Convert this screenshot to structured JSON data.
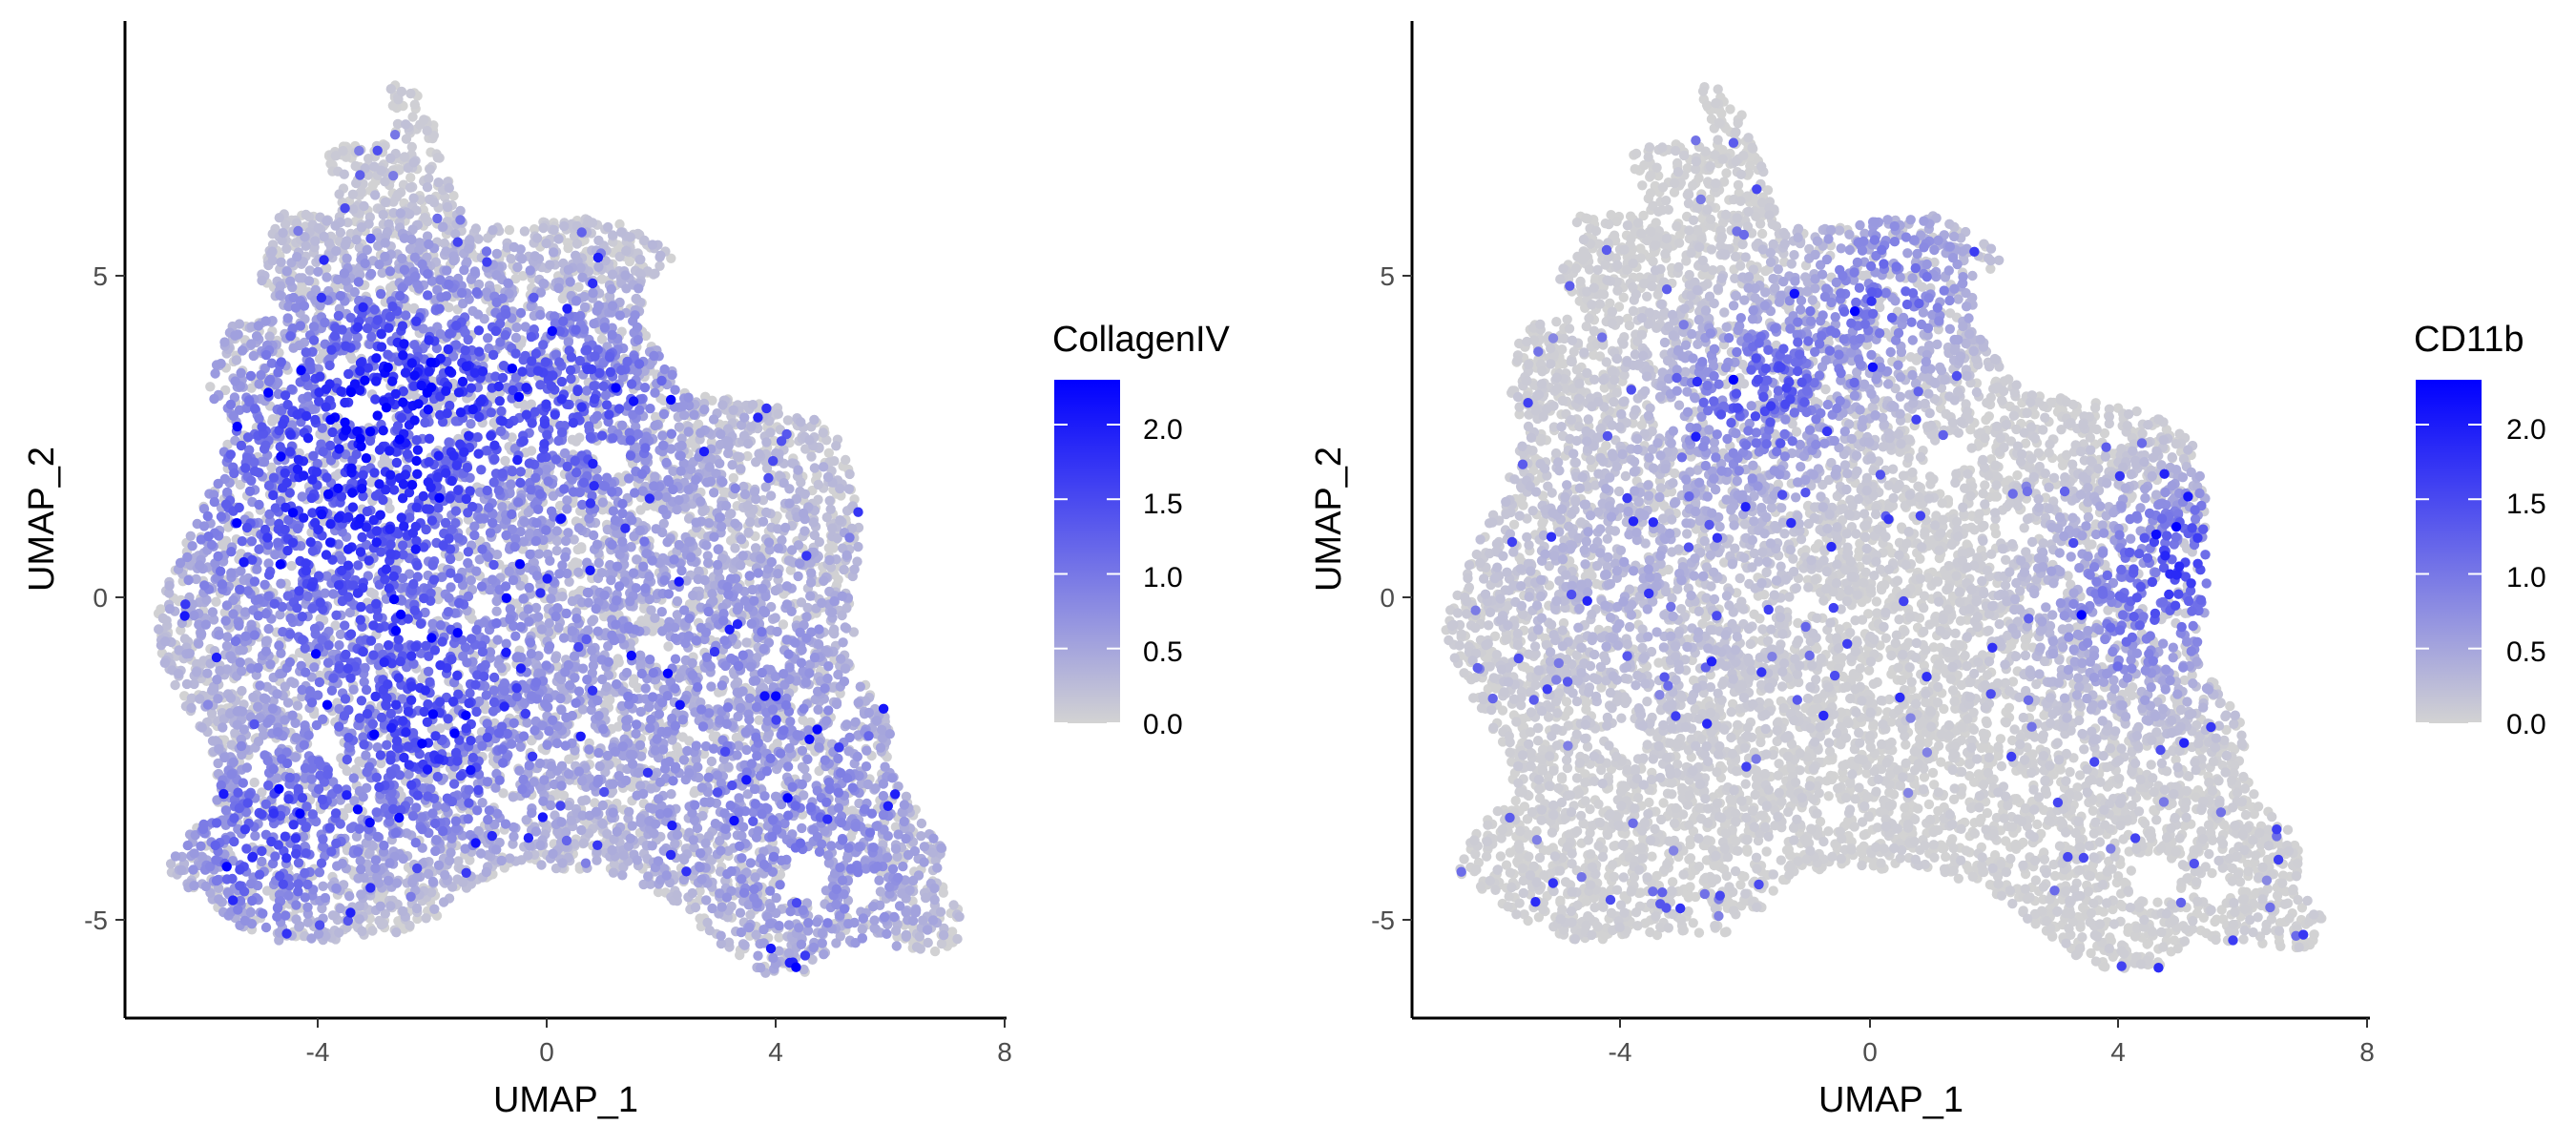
{
  "colors": {
    "low": "#d3d3d3",
    "high": "#0000ff",
    "axis": "#000000",
    "tick_label": "#4d4d4d"
  },
  "chart_data": [
    {
      "type": "scatter",
      "panel": "left",
      "feature": "CollagenIV",
      "xlabel": "UMAP_1",
      "ylabel": "UMAP_2",
      "xlim": [
        -7.0,
        8.0
      ],
      "ylim": [
        -6.5,
        9.0
      ],
      "x_ticks": [
        -4,
        0,
        4,
        8
      ],
      "x_tick_labels": [
        "-4",
        "0",
        "4",
        "8"
      ],
      "y_ticks": [
        -5,
        0,
        5
      ],
      "y_tick_labels": [
        "-5",
        "0",
        "5"
      ],
      "legend": {
        "title": "CollagenIV",
        "min": 0.0,
        "max": 2.3,
        "breaks": [
          0.0,
          0.5,
          1.0,
          1.5,
          2.0
        ],
        "break_labels": [
          "0.0",
          "0.5",
          "1.0",
          "1.5",
          "2.0"
        ],
        "placement": "right"
      },
      "expression_hotspots": [
        {
          "x": -3.5,
          "y": 1.5,
          "sigma": 1.8,
          "value": 1.3
        },
        {
          "x": -2.0,
          "y": 3.5,
          "sigma": 1.2,
          "value": 1.0
        },
        {
          "x": -2.0,
          "y": -2.2,
          "sigma": 1.2,
          "value": 1.1
        },
        {
          "x": -4.6,
          "y": -3.8,
          "sigma": 0.9,
          "value": 1.2
        },
        {
          "x": 0.8,
          "y": 3.2,
          "sigma": 1.1,
          "value": 0.9
        },
        {
          "x": 2.5,
          "y": -1.0,
          "sigma": 2.5,
          "value": 0.5
        },
        {
          "x": 5.0,
          "y": -4.0,
          "sigma": 1.5,
          "value": 0.5
        }
      ],
      "background_level": 0.15,
      "n_points": 9000,
      "seed": 11
    },
    {
      "type": "scatter",
      "panel": "right",
      "feature": "CD11b",
      "xlabel": "UMAP_1",
      "ylabel": "UMAP_2",
      "xlim": [
        -7.0,
        8.0
      ],
      "ylim": [
        -6.5,
        9.0
      ],
      "x_ticks": [
        -4,
        0,
        4,
        8
      ],
      "x_tick_labels": [
        "-4",
        "0",
        "4",
        "8"
      ],
      "y_ticks": [
        -5,
        0,
        5
      ],
      "y_tick_labels": [
        "-5",
        "0",
        "5"
      ],
      "legend": {
        "title": "CD11b",
        "min": 0.0,
        "max": 2.3,
        "breaks": [
          0.0,
          0.5,
          1.0,
          1.5,
          2.0
        ],
        "break_labels": [
          "0.0",
          "0.5",
          "1.0",
          "1.5",
          "2.0"
        ],
        "placement": "right"
      },
      "expression_hotspots": [
        {
          "x": -1.5,
          "y": 3.2,
          "sigma": 0.9,
          "value": 1.1
        },
        {
          "x": 0.5,
          "y": 4.8,
          "sigma": 0.9,
          "value": 0.9
        },
        {
          "x": 4.5,
          "y": 0.0,
          "sigma": 1.1,
          "value": 0.9
        },
        {
          "x": 5.3,
          "y": 0.8,
          "sigma": 0.6,
          "value": 0.8
        },
        {
          "x": -3.5,
          "y": 0.5,
          "sigma": 1.5,
          "value": 0.3
        }
      ],
      "background_level": 0.08,
      "n_points": 9000,
      "seed": 29
    }
  ]
}
